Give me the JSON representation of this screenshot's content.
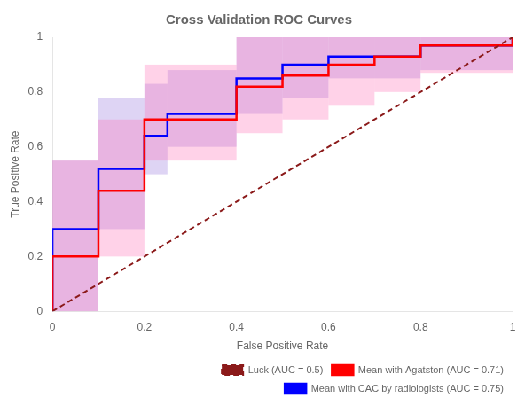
{
  "chart_data": {
    "type": "line",
    "title": "Cross Validation ROC Curves",
    "xlabel": "False Positive Rate",
    "ylabel": "True Positive Rate",
    "xlim": [
      0.0,
      1.0
    ],
    "ylim": [
      0.0,
      1.0
    ],
    "xticks": [
      0.0,
      0.2,
      0.4,
      0.6,
      0.8,
      1.0
    ],
    "yticks": [
      0.0,
      0.2,
      0.4,
      0.6,
      0.8,
      1.0
    ],
    "grid": false,
    "legend": "lower right",
    "series": [
      {
        "name": "Luck (AUC = 0.5)",
        "color": "#8B1A1A",
        "line_style": "dashed",
        "x": [
          0,
          1
        ],
        "values": [
          0,
          1
        ]
      },
      {
        "name": "Mean with Agatston (AUC = 0.71)",
        "color": "#FF0000",
        "line_style": "solid",
        "x": [
          0.0,
          0.0,
          0.1,
          0.1,
          0.2,
          0.2,
          0.4,
          0.4,
          0.5,
          0.5,
          0.6,
          0.6,
          0.7,
          0.7,
          0.8,
          0.8,
          1.0,
          1.0
        ],
        "values": [
          0.0,
          0.2,
          0.2,
          0.44,
          0.44,
          0.7,
          0.7,
          0.82,
          0.82,
          0.86,
          0.86,
          0.9,
          0.9,
          0.93,
          0.93,
          0.97,
          0.97,
          1.0
        ]
      },
      {
        "name": "Mean with CAC by radiologists (AUC = 0.75)",
        "color": "#0000FF",
        "line_style": "solid",
        "x": [
          0.0,
          0.0,
          0.1,
          0.1,
          0.2,
          0.2,
          0.25,
          0.25,
          0.4,
          0.4,
          0.5,
          0.5,
          0.6,
          0.6,
          0.8,
          0.8,
          1.0,
          1.0
        ],
        "values": [
          0.0,
          0.3,
          0.3,
          0.52,
          0.52,
          0.64,
          0.64,
          0.72,
          0.72,
          0.85,
          0.85,
          0.9,
          0.9,
          0.93,
          0.93,
          0.97,
          0.97,
          1.0
        ]
      }
    ],
    "bands": [
      {
        "color": "#9370DB",
        "x": [
          0.0,
          0.1,
          0.2,
          0.25,
          0.4,
          0.5,
          0.6,
          0.8
        ],
        "w": [
          0.1,
          0.1,
          0.05,
          0.15,
          0.1,
          0.1,
          0.2,
          0.2
        ],
        "y_lo": [
          0.0,
          0.3,
          0.5,
          0.6,
          0.72,
          0.78,
          0.85,
          0.88
        ],
        "y_hi": [
          0.55,
          0.78,
          0.83,
          0.88,
          1.0,
          1.0,
          1.0,
          1.0
        ]
      },
      {
        "color": "#FF69B4",
        "x": [
          0.0,
          0.1,
          0.2,
          0.4,
          0.5,
          0.6,
          0.7,
          0.8
        ],
        "w": [
          0.1,
          0.1,
          0.2,
          0.1,
          0.1,
          0.1,
          0.1,
          0.2
        ],
        "y_lo": [
          0.0,
          0.2,
          0.55,
          0.65,
          0.7,
          0.75,
          0.8,
          0.87
        ],
        "y_hi": [
          0.55,
          0.7,
          0.9,
          1.0,
          1.0,
          1.0,
          1.0,
          1.0
        ]
      }
    ]
  }
}
